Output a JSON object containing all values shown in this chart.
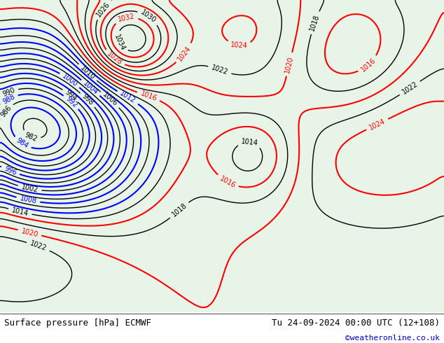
{
  "title_left": "Surface pressure [hPa] ECMWF",
  "title_right": "Tu 24-09-2024 00:00 UTC (12+108)",
  "copyright": "©weatheronline.co.uk",
  "copyright_color": "#0000cc",
  "bg_color": "#e8f4e8",
  "land_color": "#c8e8c8",
  "sea_color": "#ddeeff",
  "text_color": "#000000",
  "figsize": [
    6.34,
    4.9
  ],
  "dpi": 100
}
